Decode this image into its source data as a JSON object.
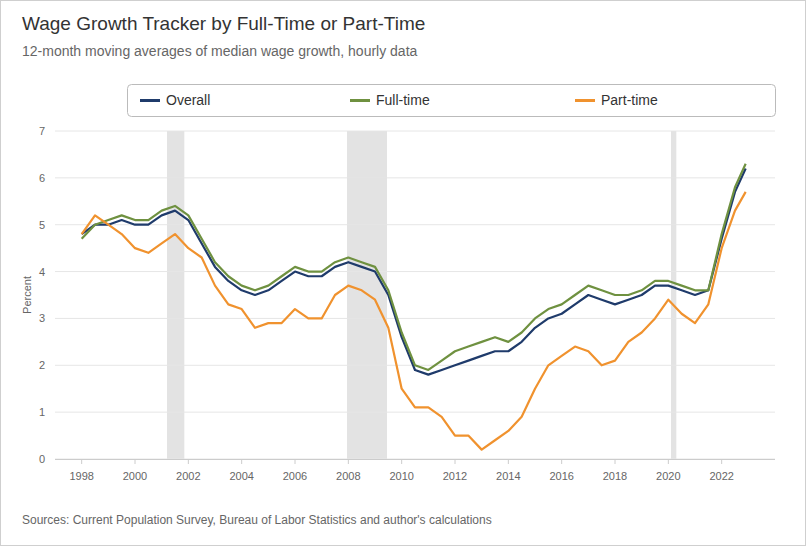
{
  "chart_data": {
    "type": "line",
    "title": "Wage Growth Tracker by Full-Time or Part-Time",
    "subtitle": "12-month moving averages of median wage growth, hourly data",
    "y_label": "Percent",
    "source": "Sources: Current Population Survey, Bureau of Labor Statistics and author's calculations",
    "x": [
      1998.0,
      1998.5,
      1999.0,
      1999.5,
      2000.0,
      2000.5,
      2001.0,
      2001.5,
      2002.0,
      2002.5,
      2003.0,
      2003.5,
      2004.0,
      2004.5,
      2005.0,
      2005.5,
      2006.0,
      2006.5,
      2007.0,
      2007.5,
      2008.0,
      2008.5,
      2009.0,
      2009.5,
      2010.0,
      2010.5,
      2011.0,
      2011.5,
      2012.0,
      2012.5,
      2013.0,
      2013.5,
      2014.0,
      2014.5,
      2015.0,
      2015.5,
      2016.0,
      2016.5,
      2017.0,
      2017.5,
      2018.0,
      2018.5,
      2019.0,
      2019.5,
      2020.0,
      2020.5,
      2021.0,
      2021.5,
      2022.0,
      2022.5,
      2022.9
    ],
    "series": [
      {
        "name": "Overall",
        "color": "#1f3b6b",
        "values": [
          4.8,
          5.0,
          5.0,
          5.1,
          5.0,
          5.0,
          5.2,
          5.3,
          5.1,
          4.6,
          4.1,
          3.8,
          3.6,
          3.5,
          3.6,
          3.8,
          4.0,
          3.9,
          3.9,
          4.1,
          4.2,
          4.1,
          4.0,
          3.5,
          2.6,
          1.9,
          1.8,
          1.9,
          2.0,
          2.1,
          2.2,
          2.3,
          2.3,
          2.5,
          2.8,
          3.0,
          3.1,
          3.3,
          3.5,
          3.4,
          3.3,
          3.4,
          3.5,
          3.7,
          3.7,
          3.6,
          3.5,
          3.6,
          4.7,
          5.7,
          6.2
        ]
      },
      {
        "name": "Full-time",
        "color": "#6f9140",
        "values": [
          4.7,
          5.0,
          5.1,
          5.2,
          5.1,
          5.1,
          5.3,
          5.4,
          5.2,
          4.7,
          4.2,
          3.9,
          3.7,
          3.6,
          3.7,
          3.9,
          4.1,
          4.0,
          4.0,
          4.2,
          4.3,
          4.2,
          4.1,
          3.6,
          2.7,
          2.0,
          1.9,
          2.1,
          2.3,
          2.4,
          2.5,
          2.6,
          2.5,
          2.7,
          3.0,
          3.2,
          3.3,
          3.5,
          3.7,
          3.6,
          3.5,
          3.5,
          3.6,
          3.8,
          3.8,
          3.7,
          3.6,
          3.6,
          4.8,
          5.8,
          6.3
        ]
      },
      {
        "name": "Part-time",
        "color": "#f0922e",
        "values": [
          4.8,
          5.2,
          5.0,
          4.8,
          4.5,
          4.4,
          4.6,
          4.8,
          4.5,
          4.3,
          3.7,
          3.3,
          3.2,
          2.8,
          2.9,
          2.9,
          3.2,
          3.0,
          3.0,
          3.5,
          3.7,
          3.6,
          3.4,
          2.8,
          1.5,
          1.1,
          1.1,
          0.9,
          0.5,
          0.5,
          0.2,
          0.4,
          0.6,
          0.9,
          1.5,
          2.0,
          2.2,
          2.4,
          2.3,
          2.0,
          2.1,
          2.5,
          2.7,
          3.0,
          3.4,
          3.1,
          2.9,
          3.3,
          4.5,
          5.3,
          5.7
        ]
      }
    ],
    "shaded_periods": [
      {
        "start": 2001.2,
        "end": 2001.85
      },
      {
        "start": 2007.95,
        "end": 2009.45
      },
      {
        "start": 2020.1,
        "end": 2020.3
      }
    ],
    "xlim": [
      1997,
      2024
    ],
    "xticks": [
      1998,
      2000,
      2002,
      2004,
      2006,
      2008,
      2010,
      2012,
      2014,
      2016,
      2018,
      2020,
      2022
    ],
    "ylim": [
      0,
      7
    ],
    "yticks": [
      0,
      1,
      2,
      3,
      4,
      5,
      6,
      7
    ],
    "grid": true,
    "legend": "top"
  }
}
